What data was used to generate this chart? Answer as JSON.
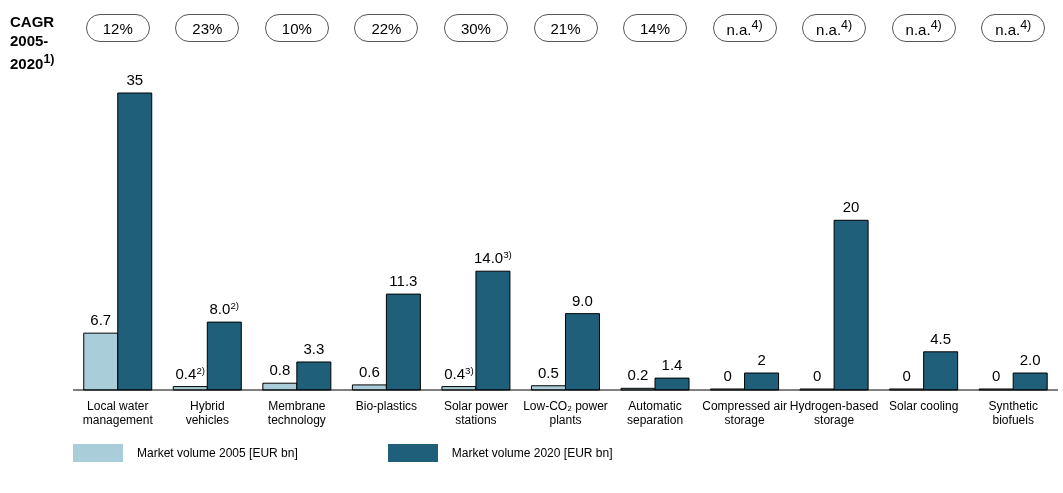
{
  "chart_data": {
    "type": "bar",
    "categories": [
      "Local water management",
      "Hybrid vehicles",
      "Membrane technology",
      "Bio-plastics",
      "Solar power stations",
      "Low-CO₂ power plants",
      "Automatic separation",
      "Compressed air storage",
      "Hydrogen-based storage",
      "Solar cooling",
      "Synthetic biofuels"
    ],
    "series": [
      {
        "name": "Market volume 2005 [EUR bn]",
        "color": "#a9cdd9",
        "values": [
          6.7,
          0.4,
          0.8,
          0.6,
          0.4,
          0.5,
          0.2,
          0,
          0,
          0,
          0
        ],
        "value_labels": [
          "6.7",
          "0.4$^{2)}$",
          "0.8",
          "0.6",
          "0.4$^{3)}$",
          "0.5",
          "0.2",
          "0",
          "0",
          "0",
          "0"
        ]
      },
      {
        "name": "Market volume 2020 [EUR bn]",
        "color": "#1f5f7a",
        "values": [
          35,
          8.0,
          3.3,
          11.3,
          14.0,
          9.0,
          1.4,
          2,
          20,
          4.5,
          2.0
        ],
        "value_labels": [
          "35",
          "8.0$^{2)}$",
          "3.3",
          "11.3",
          "14.0$^{3)}$",
          "9.0",
          "1.4",
          "2",
          "20",
          "4.5",
          "2.0"
        ]
      }
    ],
    "annotations": [
      "CAGR 2005-2020$^{1)}$",
      "12%",
      "23%",
      "10%",
      "22%",
      "30%",
      "21%",
      "14%",
      "n.a.$^{4)}$",
      "n.a.$^{4)}$",
      "n.a.$^{4)}$",
      "n.a.$^{4)}$"
    ],
    "legend": "bottom left"
  }
}
